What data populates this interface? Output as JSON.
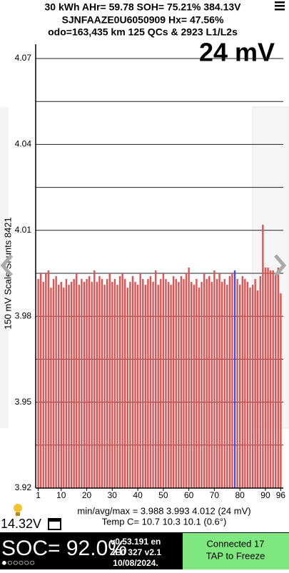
{
  "header": {
    "line1": "30 kWh  AHr= 59.78  SOH= 75.21%   384.13V",
    "line2": "SJNFAAZE0U6050909   Hx= 47.56%",
    "line3": "odo=163,435 km 125 QCs & 2923 L1/L2s"
  },
  "chart_data": {
    "type": "bar",
    "annotation": "24 mV",
    "ylabel": "150 mV Scale Shunts 8421",
    "x": [
      1,
      2,
      3,
      4,
      5,
      6,
      7,
      8,
      9,
      10,
      11,
      12,
      13,
      14,
      15,
      16,
      17,
      18,
      19,
      20,
      21,
      22,
      23,
      24,
      25,
      26,
      27,
      28,
      29,
      30,
      31,
      32,
      33,
      34,
      35,
      36,
      37,
      38,
      39,
      40,
      41,
      42,
      43,
      44,
      45,
      46,
      47,
      48,
      49,
      50,
      51,
      52,
      53,
      54,
      55,
      56,
      57,
      58,
      59,
      60,
      61,
      62,
      63,
      64,
      65,
      66,
      67,
      68,
      69,
      70,
      71,
      72,
      73,
      74,
      75,
      76,
      77,
      78,
      79,
      80,
      81,
      82,
      83,
      84,
      85,
      86,
      87,
      88,
      89,
      90,
      91,
      92,
      93,
      94,
      95,
      96
    ],
    "values": [
      3.993,
      3.995,
      3.992,
      3.995,
      3.996,
      3.99,
      3.993,
      3.994,
      3.991,
      3.992,
      3.99,
      3.993,
      3.991,
      3.992,
      3.993,
      3.995,
      3.991,
      3.993,
      3.992,
      3.993,
      3.994,
      3.992,
      3.996,
      3.992,
      3.994,
      3.993,
      3.991,
      3.993,
      3.995,
      3.992,
      3.993,
      3.991,
      3.994,
      3.995,
      3.993,
      3.99,
      3.992,
      3.994,
      3.992,
      3.991,
      3.995,
      3.993,
      3.991,
      3.993,
      3.994,
      3.992,
      3.996,
      3.991,
      3.993,
      3.995,
      3.993,
      3.992,
      3.991,
      3.994,
      3.993,
      3.992,
      3.994,
      3.993,
      3.995,
      3.997,
      3.992,
      3.991,
      3.993,
      3.99,
      3.992,
      3.995,
      3.993,
      3.994,
      3.992,
      3.996,
      3.993,
      3.995,
      3.992,
      3.993,
      3.991,
      3.994,
      3.995,
      3.996,
      3.993,
      3.991,
      3.994,
      3.993,
      3.992,
      3.99,
      3.991,
      3.993,
      3.989,
      3.994,
      4.012,
      3.997,
      3.997,
      3.996,
      3.996,
      3.995,
      3.997,
      3.988
    ],
    "color": "#e25252",
    "highlight": {
      "x": 78,
      "color": "#3a4fe0"
    },
    "xlim": [
      0,
      97
    ],
    "xticks": [
      1,
      10,
      20,
      30,
      40,
      50,
      60,
      70,
      80,
      90,
      96
    ],
    "ylim": [
      3.92,
      4.07
    ],
    "yticks": [
      3.92,
      3.95,
      3.98,
      4.01,
      4.04,
      4.07
    ],
    "ygrid": [
      3.935,
      3.965,
      3.995,
      4.025,
      4.055
    ]
  },
  "footer": {
    "voltage": "14.32V",
    "stats": "min/avg/max = 3.988 3.993 4.012  (24 mV)",
    "temp": "Temp C= 10.7  10.3  10.1  (0.6°)",
    "soc": "SOC= 92.0%",
    "version": "v0.53.191 en",
    "model": "ZE0 327 v2.1",
    "date": "10/08/2024.",
    "pages": "●○○○○○",
    "status1": "Connected 17",
    "status2": "TAP to Freeze"
  }
}
